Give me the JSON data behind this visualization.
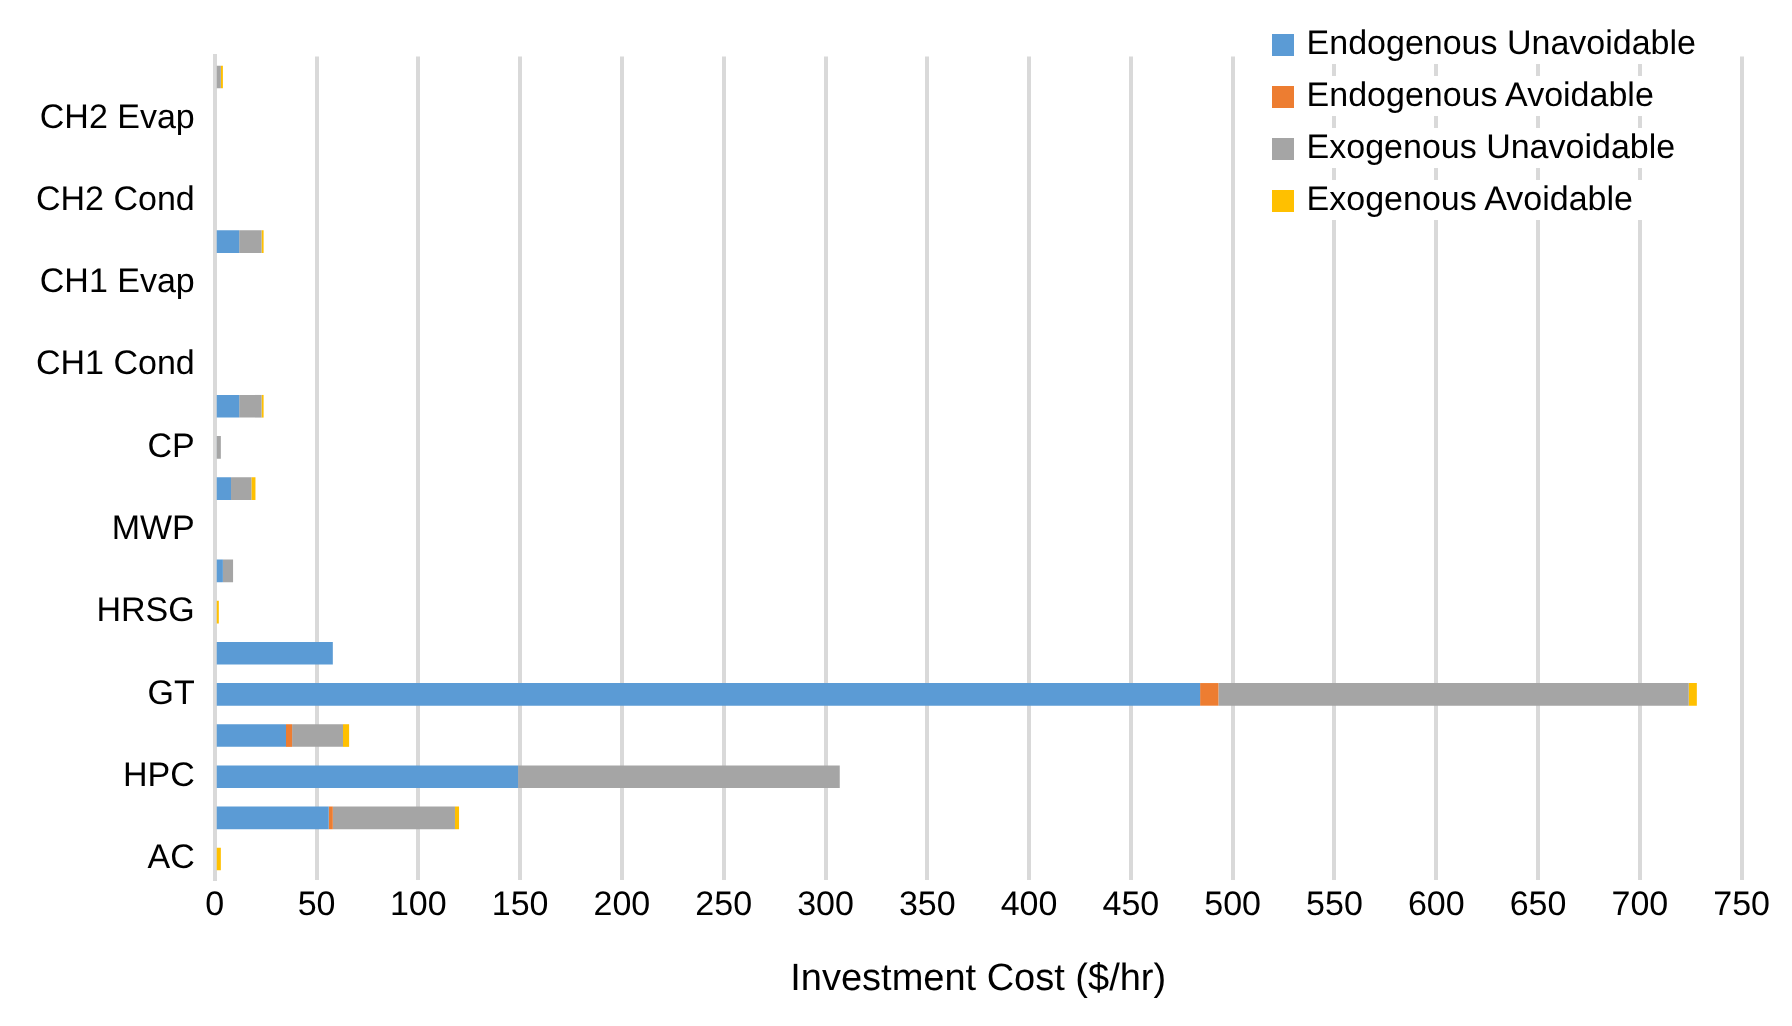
{
  "chart_data": {
    "type": "bar",
    "orientation": "horizontal",
    "stacked": true,
    "xlabel": "Investment Cost ($/hr)",
    "categories": [
      null,
      "CH2 Evap",
      null,
      "CH2 Cond",
      null,
      "CH1 Evap",
      null,
      "CH1 Cond",
      null,
      "CP",
      null,
      "MWP",
      null,
      "HRSG",
      null,
      "GT",
      null,
      "HPC",
      null,
      "AC"
    ],
    "series": [
      {
        "name": "Endogenous Unavoidable",
        "color": "#5b9bd5",
        "values": [
          0,
          0,
          0,
          0,
          12,
          0,
          0,
          0,
          12,
          1,
          8,
          0,
          4,
          0,
          58,
          484,
          35,
          149,
          56,
          0
        ]
      },
      {
        "name": "Endogenous Avoidable",
        "color": "#ed7d31",
        "values": [
          0,
          0,
          0,
          0,
          0,
          0,
          0,
          0,
          0,
          0,
          0,
          0,
          0,
          0,
          0,
          9,
          3,
          0,
          2,
          0
        ]
      },
      {
        "name": "Exogenous Unavoidable",
        "color": "#a5a5a5",
        "values": [
          3,
          0,
          0,
          0,
          11,
          0,
          0,
          0,
          11,
          2,
          10,
          0,
          5,
          0,
          0,
          231,
          25,
          158,
          60,
          0
        ]
      },
      {
        "name": "Exogenous Avoidable",
        "color": "#ffc000",
        "values": [
          1,
          0,
          0,
          0,
          1,
          0,
          0,
          0,
          1,
          0,
          2,
          0,
          0,
          2,
          0,
          4,
          3,
          0,
          2,
          3
        ]
      }
    ],
    "xlim": [
      0,
      750
    ],
    "xticks": [
      0,
      50,
      100,
      150,
      200,
      250,
      300,
      350,
      400,
      450,
      500,
      550,
      600,
      650,
      700,
      750
    ],
    "grid": "x",
    "legend": "top right"
  }
}
